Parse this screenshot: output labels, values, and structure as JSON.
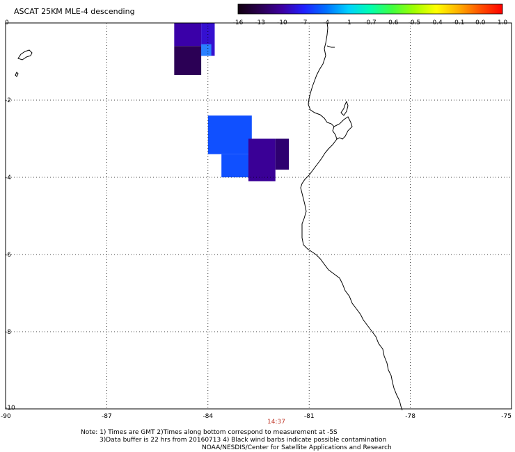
{
  "title": "ASCAT 25KM MLE-4 descending",
  "colorbar": {
    "tick_labels": [
      "-16",
      "-13",
      "-10",
      "-7",
      "-4",
      "-1",
      "-0.7",
      "-0.6",
      "-0.5",
      "-0.4",
      "-0.1",
      "0.0",
      "1.0"
    ],
    "colors": [
      "#120010",
      "#2a0050",
      "#3d00a0",
      "#2020ff",
      "#0070ff",
      "#00d0ff",
      "#00ffb0",
      "#40ff40",
      "#a0ff00",
      "#ffff00",
      "#ffb000",
      "#ff5000",
      "#ff0000"
    ]
  },
  "axes": {
    "x_ticks": [
      "-90",
      "-87",
      "-84",
      "-81",
      "-78",
      "-75"
    ],
    "y_ticks": [
      "0",
      "-2",
      "-4",
      "-6",
      "-8",
      "-10"
    ],
    "lon_range": [
      -90,
      -75
    ],
    "lat_range": [
      -10,
      0
    ]
  },
  "time_label": "14:37",
  "notes": [
    "Note: 1) Times are GMT 2)Times along bottom correspond to measurement at -5S",
    "3)Data buffer is 22 hrs from 20160713 4) Black wind barbs indicate possible contamination",
    "NOAA/NESDIS/Center for Satellite Applications and Research"
  ],
  "swaths": [
    {
      "lon": [
        -85.0,
        -84.2
      ],
      "lat": [
        0.0,
        -0.6
      ],
      "color": "#3a00a8"
    },
    {
      "lon": [
        -85.0,
        -84.2
      ],
      "lat": [
        -0.6,
        -1.35
      ],
      "color": "#2b0055"
    },
    {
      "lon": [
        -84.2,
        -83.8
      ],
      "lat": [
        0.0,
        -0.85
      ],
      "color": "#3510d0"
    },
    {
      "lon": [
        -84.2,
        -83.9
      ],
      "lat": [
        -0.55,
        -0.85
      ],
      "color": "#2a80ff"
    },
    {
      "lon": [
        -84.0,
        -82.7
      ],
      "lat": [
        -2.4,
        -3.4
      ],
      "color": "#1050ff"
    },
    {
      "lon": [
        -83.6,
        -82.7
      ],
      "lat": [
        -3.4,
        -4.0
      ],
      "color": "#1050ff"
    },
    {
      "lon": [
        -82.8,
        -82.0
      ],
      "lat": [
        -3.0,
        -4.1
      ],
      "color": "#3a0096"
    },
    {
      "lon": [
        -82.0,
        -81.6
      ],
      "lat": [
        -3.0,
        -3.8
      ],
      "color": "#2e0070"
    }
  ]
}
